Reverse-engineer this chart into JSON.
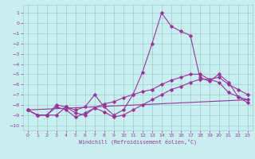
{
  "xlabel": "Windchill (Refroidissement éolien,°C)",
  "background_color": "#c8eef0",
  "grid_color": "#a0c8d0",
  "line_color": "#993399",
  "xlim": [
    -0.5,
    23.5
  ],
  "ylim": [
    -10.5,
    1.8
  ],
  "xticks": [
    0,
    1,
    2,
    3,
    4,
    5,
    6,
    7,
    8,
    9,
    10,
    11,
    12,
    13,
    14,
    15,
    16,
    17,
    18,
    19,
    20,
    21,
    22,
    23
  ],
  "yticks": [
    1,
    0,
    -1,
    -2,
    -3,
    -4,
    -5,
    -6,
    -7,
    -8,
    -9,
    -10
  ],
  "series1_x": [
    0,
    1,
    2,
    3,
    4,
    5,
    6,
    7,
    8,
    9,
    10,
    11,
    12,
    13,
    14,
    15,
    16,
    17,
    18,
    19,
    20,
    21,
    22,
    23
  ],
  "series1_y": [
    -8.5,
    -9.0,
    -9.0,
    -8.0,
    -8.2,
    -8.5,
    -8.2,
    -7.0,
    -8.2,
    -9.0,
    -8.5,
    -7.0,
    -4.8,
    -2.0,
    1.0,
    -0.3,
    -0.8,
    -1.2,
    -5.3,
    -5.7,
    -5.0,
    -5.8,
    -7.2,
    -7.5
  ],
  "series2_x": [
    0,
    1,
    2,
    3,
    4,
    5,
    6,
    7,
    8,
    9,
    10,
    11,
    12,
    13,
    14,
    15,
    16,
    17,
    18,
    19,
    20,
    21,
    22,
    23
  ],
  "series2_y": [
    -8.5,
    -9.0,
    -9.0,
    -8.2,
    -8.5,
    -9.2,
    -8.8,
    -8.3,
    -7.9,
    -7.7,
    -7.3,
    -7.0,
    -6.7,
    -6.5,
    -6.0,
    -5.6,
    -5.3,
    -5.0,
    -5.0,
    -5.5,
    -5.3,
    -6.0,
    -6.5,
    -7.0
  ],
  "series3_x": [
    0,
    1,
    2,
    3,
    4,
    5,
    6,
    7,
    8,
    9,
    10,
    11,
    12,
    13,
    14,
    15,
    16,
    17,
    18,
    19,
    20,
    21,
    22,
    23
  ],
  "series3_y": [
    -8.5,
    -9.0,
    -9.0,
    -9.0,
    -8.2,
    -8.8,
    -9.0,
    -8.3,
    -8.7,
    -9.2,
    -9.0,
    -8.5,
    -8.0,
    -7.5,
    -7.0,
    -6.5,
    -6.2,
    -5.8,
    -5.5,
    -5.5,
    -5.8,
    -6.8,
    -7.2,
    -7.8
  ],
  "series4_x": [
    0,
    23
  ],
  "series4_y": [
    -8.5,
    -7.5
  ]
}
